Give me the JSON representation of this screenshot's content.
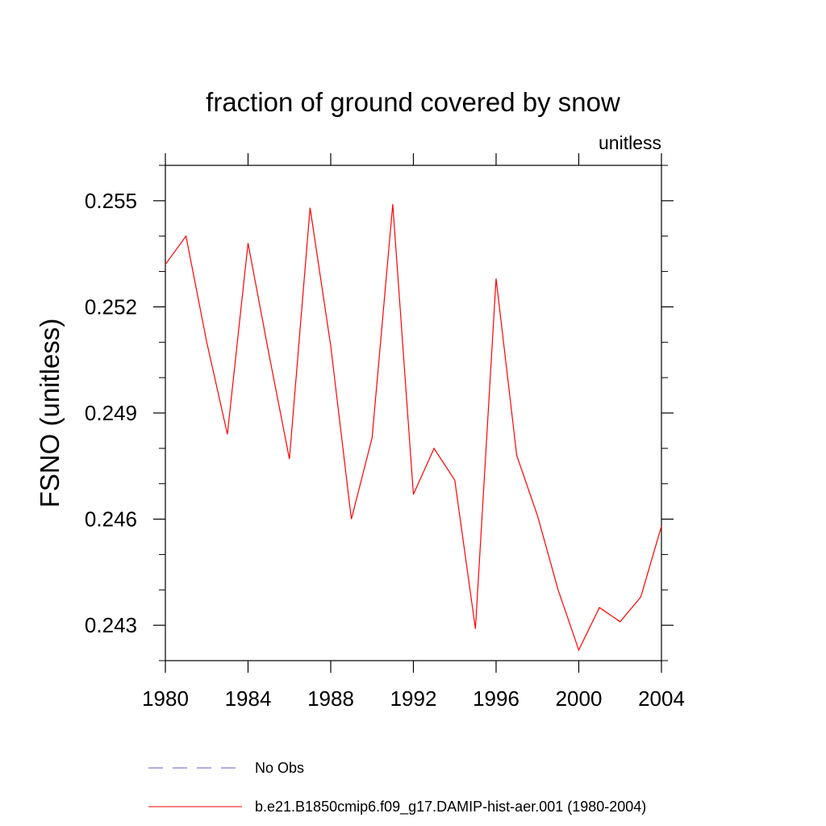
{
  "chart_data": {
    "type": "line",
    "title": "fraction of ground covered by snow",
    "units_label": "unitless",
    "xlabel": "",
    "ylabel": "FSNO  (unitless)",
    "xlim": [
      1980,
      2004
    ],
    "ylim": [
      0.242,
      0.256
    ],
    "x_ticks": [
      1980,
      1984,
      1988,
      1992,
      1996,
      2000,
      2004
    ],
    "y_ticks": [
      0.243,
      0.246,
      0.249,
      0.252,
      0.255
    ],
    "y_tick_labels": [
      "0.243",
      "0.246",
      "0.249",
      "0.252",
      "0.255"
    ],
    "grid": false,
    "legend_position": "bottom",
    "series": [
      {
        "name": "b.e21.B1850cmip6.f09_g17.DAMIP-hist-aer.001 (1980-2004)",
        "color": "#ff0000",
        "style": "solid",
        "x": [
          1980,
          1981,
          1982,
          1983,
          1984,
          1985,
          1986,
          1987,
          1988,
          1989,
          1990,
          1991,
          1992,
          1993,
          1994,
          1995,
          1996,
          1997,
          1998,
          1999,
          2000,
          2001,
          2002,
          2003,
          2004
        ],
        "values": [
          0.2532,
          0.254,
          0.251,
          0.2484,
          0.2538,
          0.2507,
          0.2477,
          0.2548,
          0.2509,
          0.246,
          0.2483,
          0.2549,
          0.2467,
          0.248,
          0.2471,
          0.2429,
          0.2528,
          0.2478,
          0.2461,
          0.244,
          0.2423,
          0.2435,
          0.2431,
          0.2438,
          0.2458
        ]
      }
    ],
    "legend": [
      {
        "label": "No Obs",
        "color": "#6a5acd",
        "style": "dashed"
      },
      {
        "label": "b.e21.B1850cmip6.f09_g17.DAMIP-hist-aer.001 (1980-2004)",
        "color": "#ff0000",
        "style": "solid"
      }
    ]
  }
}
